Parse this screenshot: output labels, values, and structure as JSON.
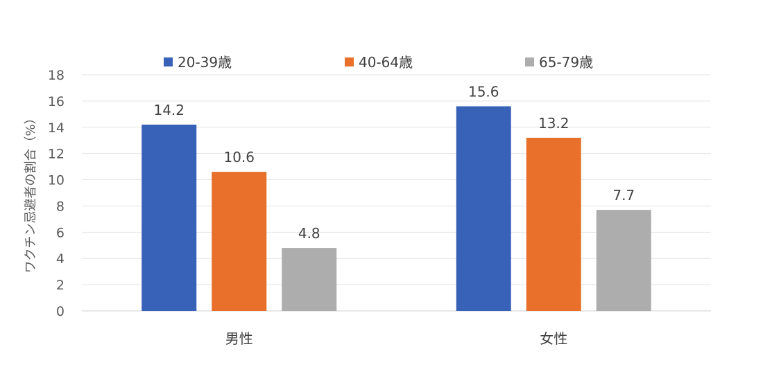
{
  "chart_data": {
    "type": "bar",
    "categories": [
      "男性",
      "女性"
    ],
    "series": [
      {
        "name": "20-39歳",
        "values": [
          14.2,
          15.6
        ],
        "color": "#3862B8"
      },
      {
        "name": "40-64歳",
        "values": [
          10.6,
          13.2
        ],
        "color": "#E8702A"
      },
      {
        "name": "65-79歳",
        "values": [
          4.8,
          7.7
        ],
        "color": "#ADADAD"
      }
    ],
    "title": "",
    "xlabel": "",
    "ylabel": "ワクチン忌避者の割合（%）",
    "ylim": [
      0,
      18
    ],
    "yticks": [
      0,
      2,
      4,
      6,
      8,
      10,
      12,
      14,
      16,
      18
    ],
    "data_labels": true,
    "grid": true,
    "legend_position": "top"
  }
}
